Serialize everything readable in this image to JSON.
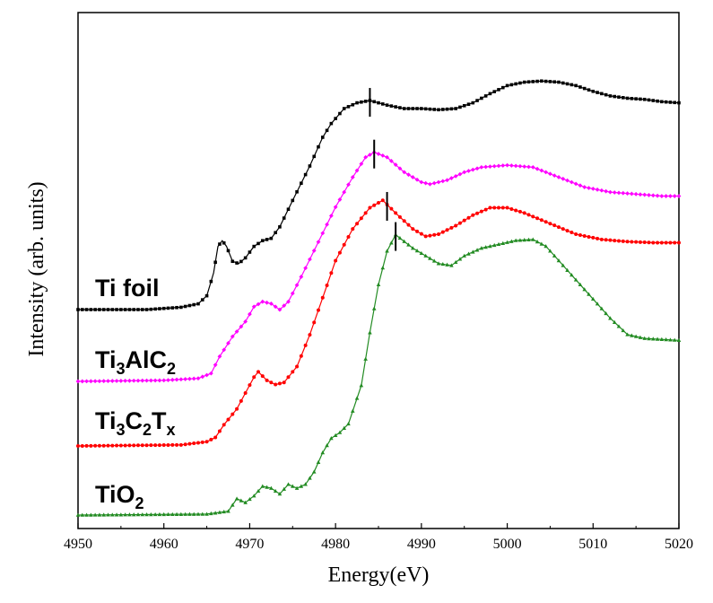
{
  "chart_data": {
    "type": "line",
    "xlabel": "Energy(eV)",
    "ylabel": "Intensity (arb. units)",
    "xlim": [
      4950,
      5020
    ],
    "xticks": [
      4950,
      4960,
      4970,
      4980,
      4990,
      5000,
      5010,
      5020
    ],
    "yticks_shown": false,
    "grid": false,
    "legend": "labels placed beside each curve",
    "series": [
      {
        "name": "Ti foil",
        "label_parts": [
          {
            "t": "Ti foil"
          }
        ],
        "color": "#000000",
        "marker": "square",
        "points": [
          [
            4950,
            0.0
          ],
          [
            4958,
            0.0
          ],
          [
            4962,
            0.02
          ],
          [
            4964,
            0.05
          ],
          [
            4965,
            0.12
          ],
          [
            4965.8,
            0.32
          ],
          [
            4966.3,
            0.55
          ],
          [
            4966.8,
            0.6
          ],
          [
            4967.3,
            0.55
          ],
          [
            4968,
            0.42
          ],
          [
            4968.7,
            0.4
          ],
          [
            4969.5,
            0.45
          ],
          [
            4970.5,
            0.55
          ],
          [
            4971.5,
            0.6
          ],
          [
            4972.5,
            0.62
          ],
          [
            4973.5,
            0.72
          ],
          [
            4975,
            0.95
          ],
          [
            4977,
            1.25
          ],
          [
            4978.5,
            1.5
          ],
          [
            4979.5,
            1.62
          ],
          [
            4981,
            1.75
          ],
          [
            4982.5,
            1.8
          ],
          [
            4984,
            1.82
          ],
          [
            4986,
            1.78
          ],
          [
            4988,
            1.75
          ],
          [
            4990,
            1.75
          ],
          [
            4992,
            1.74
          ],
          [
            4994,
            1.75
          ],
          [
            4996,
            1.8
          ],
          [
            4998,
            1.88
          ],
          [
            5000,
            1.95
          ],
          [
            5002,
            1.98
          ],
          [
            5004,
            1.99
          ],
          [
            5006,
            1.98
          ],
          [
            5008,
            1.95
          ],
          [
            5010,
            1.9
          ],
          [
            5012,
            1.86
          ],
          [
            5014,
            1.84
          ],
          [
            5016,
            1.83
          ],
          [
            5018,
            1.81
          ],
          [
            5020,
            1.8
          ]
        ]
      },
      {
        "name": "Ti3AlC2",
        "label_parts": [
          {
            "t": "Ti"
          },
          {
            "t": "3",
            "sub": true
          },
          {
            "t": "AlC"
          },
          {
            "t": "2",
            "sub": true
          }
        ],
        "color": "#ff00ff",
        "marker": "diamond",
        "points": [
          [
            4950,
            0.0
          ],
          [
            4960,
            0.01
          ],
          [
            4964,
            0.03
          ],
          [
            4965.5,
            0.08
          ],
          [
            4966.5,
            0.25
          ],
          [
            4968,
            0.45
          ],
          [
            4969.5,
            0.6
          ],
          [
            4970.5,
            0.75
          ],
          [
            4971.5,
            0.8
          ],
          [
            4972.5,
            0.78
          ],
          [
            4973.5,
            0.72
          ],
          [
            4974.5,
            0.8
          ],
          [
            4976,
            1.05
          ],
          [
            4978,
            1.4
          ],
          [
            4980,
            1.75
          ],
          [
            4982,
            2.05
          ],
          [
            4983.5,
            2.25
          ],
          [
            4984.5,
            2.3
          ],
          [
            4986,
            2.25
          ],
          [
            4988,
            2.1
          ],
          [
            4990,
            2.0
          ],
          [
            4991,
            1.98
          ],
          [
            4993,
            2.02
          ],
          [
            4995,
            2.1
          ],
          [
            4997,
            2.15
          ],
          [
            5000,
            2.17
          ],
          [
            5003,
            2.15
          ],
          [
            5006,
            2.05
          ],
          [
            5009,
            1.95
          ],
          [
            5012,
            1.9
          ],
          [
            5015,
            1.88
          ],
          [
            5018,
            1.86
          ],
          [
            5020,
            1.86
          ]
        ]
      },
      {
        "name": "Ti3C2Tx",
        "label_parts": [
          {
            "t": "Ti"
          },
          {
            "t": "3",
            "sub": true
          },
          {
            "t": "C"
          },
          {
            "t": "2",
            "sub": true
          },
          {
            "t": "T"
          },
          {
            "t": "x",
            "sub": true
          }
        ],
        "color": "#ff0000",
        "marker": "circle",
        "points": [
          [
            4950,
            0.0
          ],
          [
            4962,
            0.01
          ],
          [
            4965,
            0.04
          ],
          [
            4966,
            0.08
          ],
          [
            4967,
            0.2
          ],
          [
            4968.5,
            0.35
          ],
          [
            4969.5,
            0.5
          ],
          [
            4970.5,
            0.65
          ],
          [
            4971,
            0.7
          ],
          [
            4972,
            0.62
          ],
          [
            4973,
            0.58
          ],
          [
            4974,
            0.6
          ],
          [
            4975.5,
            0.75
          ],
          [
            4977,
            1.05
          ],
          [
            4978.5,
            1.4
          ],
          [
            4980,
            1.75
          ],
          [
            4982,
            2.05
          ],
          [
            4984,
            2.25
          ],
          [
            4985.5,
            2.32
          ],
          [
            4987,
            2.2
          ],
          [
            4989,
            2.05
          ],
          [
            4990.5,
            1.98
          ],
          [
            4992,
            2.0
          ],
          [
            4994,
            2.08
          ],
          [
            4996,
            2.18
          ],
          [
            4998,
            2.25
          ],
          [
            5000,
            2.25
          ],
          [
            5002,
            2.2
          ],
          [
            5005,
            2.1
          ],
          [
            5008,
            2.0
          ],
          [
            5011,
            1.95
          ],
          [
            5014,
            1.93
          ],
          [
            5017,
            1.92
          ],
          [
            5020,
            1.92
          ]
        ]
      },
      {
        "name": "TiO2",
        "label_parts": [
          {
            "t": "TiO"
          },
          {
            "t": "2",
            "sub": true
          }
        ],
        "color": "#228b22",
        "marker": "triangle",
        "points": [
          [
            4950,
            0.0
          ],
          [
            4965,
            0.01
          ],
          [
            4967.5,
            0.04
          ],
          [
            4968.5,
            0.17
          ],
          [
            4969.5,
            0.13
          ],
          [
            4970.5,
            0.2
          ],
          [
            4971.5,
            0.3
          ],
          [
            4972.5,
            0.28
          ],
          [
            4973.5,
            0.22
          ],
          [
            4974.5,
            0.32
          ],
          [
            4975.5,
            0.28
          ],
          [
            4976.5,
            0.32
          ],
          [
            4977.5,
            0.45
          ],
          [
            4978.5,
            0.65
          ],
          [
            4979.5,
            0.8
          ],
          [
            4980.5,
            0.86
          ],
          [
            4981.5,
            0.95
          ],
          [
            4983,
            1.35
          ],
          [
            4984,
            1.9
          ],
          [
            4985,
            2.4
          ],
          [
            4986,
            2.75
          ],
          [
            4987,
            2.92
          ],
          [
            4988,
            2.85
          ],
          [
            4989,
            2.78
          ],
          [
            4990.5,
            2.7
          ],
          [
            4992,
            2.62
          ],
          [
            4993.5,
            2.6
          ],
          [
            4995,
            2.7
          ],
          [
            4997,
            2.78
          ],
          [
            4999,
            2.82
          ],
          [
            5001,
            2.86
          ],
          [
            5003,
            2.87
          ],
          [
            5004.5,
            2.8
          ],
          [
            5006,
            2.65
          ],
          [
            5008,
            2.45
          ],
          [
            5010,
            2.25
          ],
          [
            5012,
            2.05
          ],
          [
            5014,
            1.88
          ],
          [
            5016,
            1.84
          ],
          [
            5020,
            1.82
          ]
        ]
      }
    ]
  }
}
